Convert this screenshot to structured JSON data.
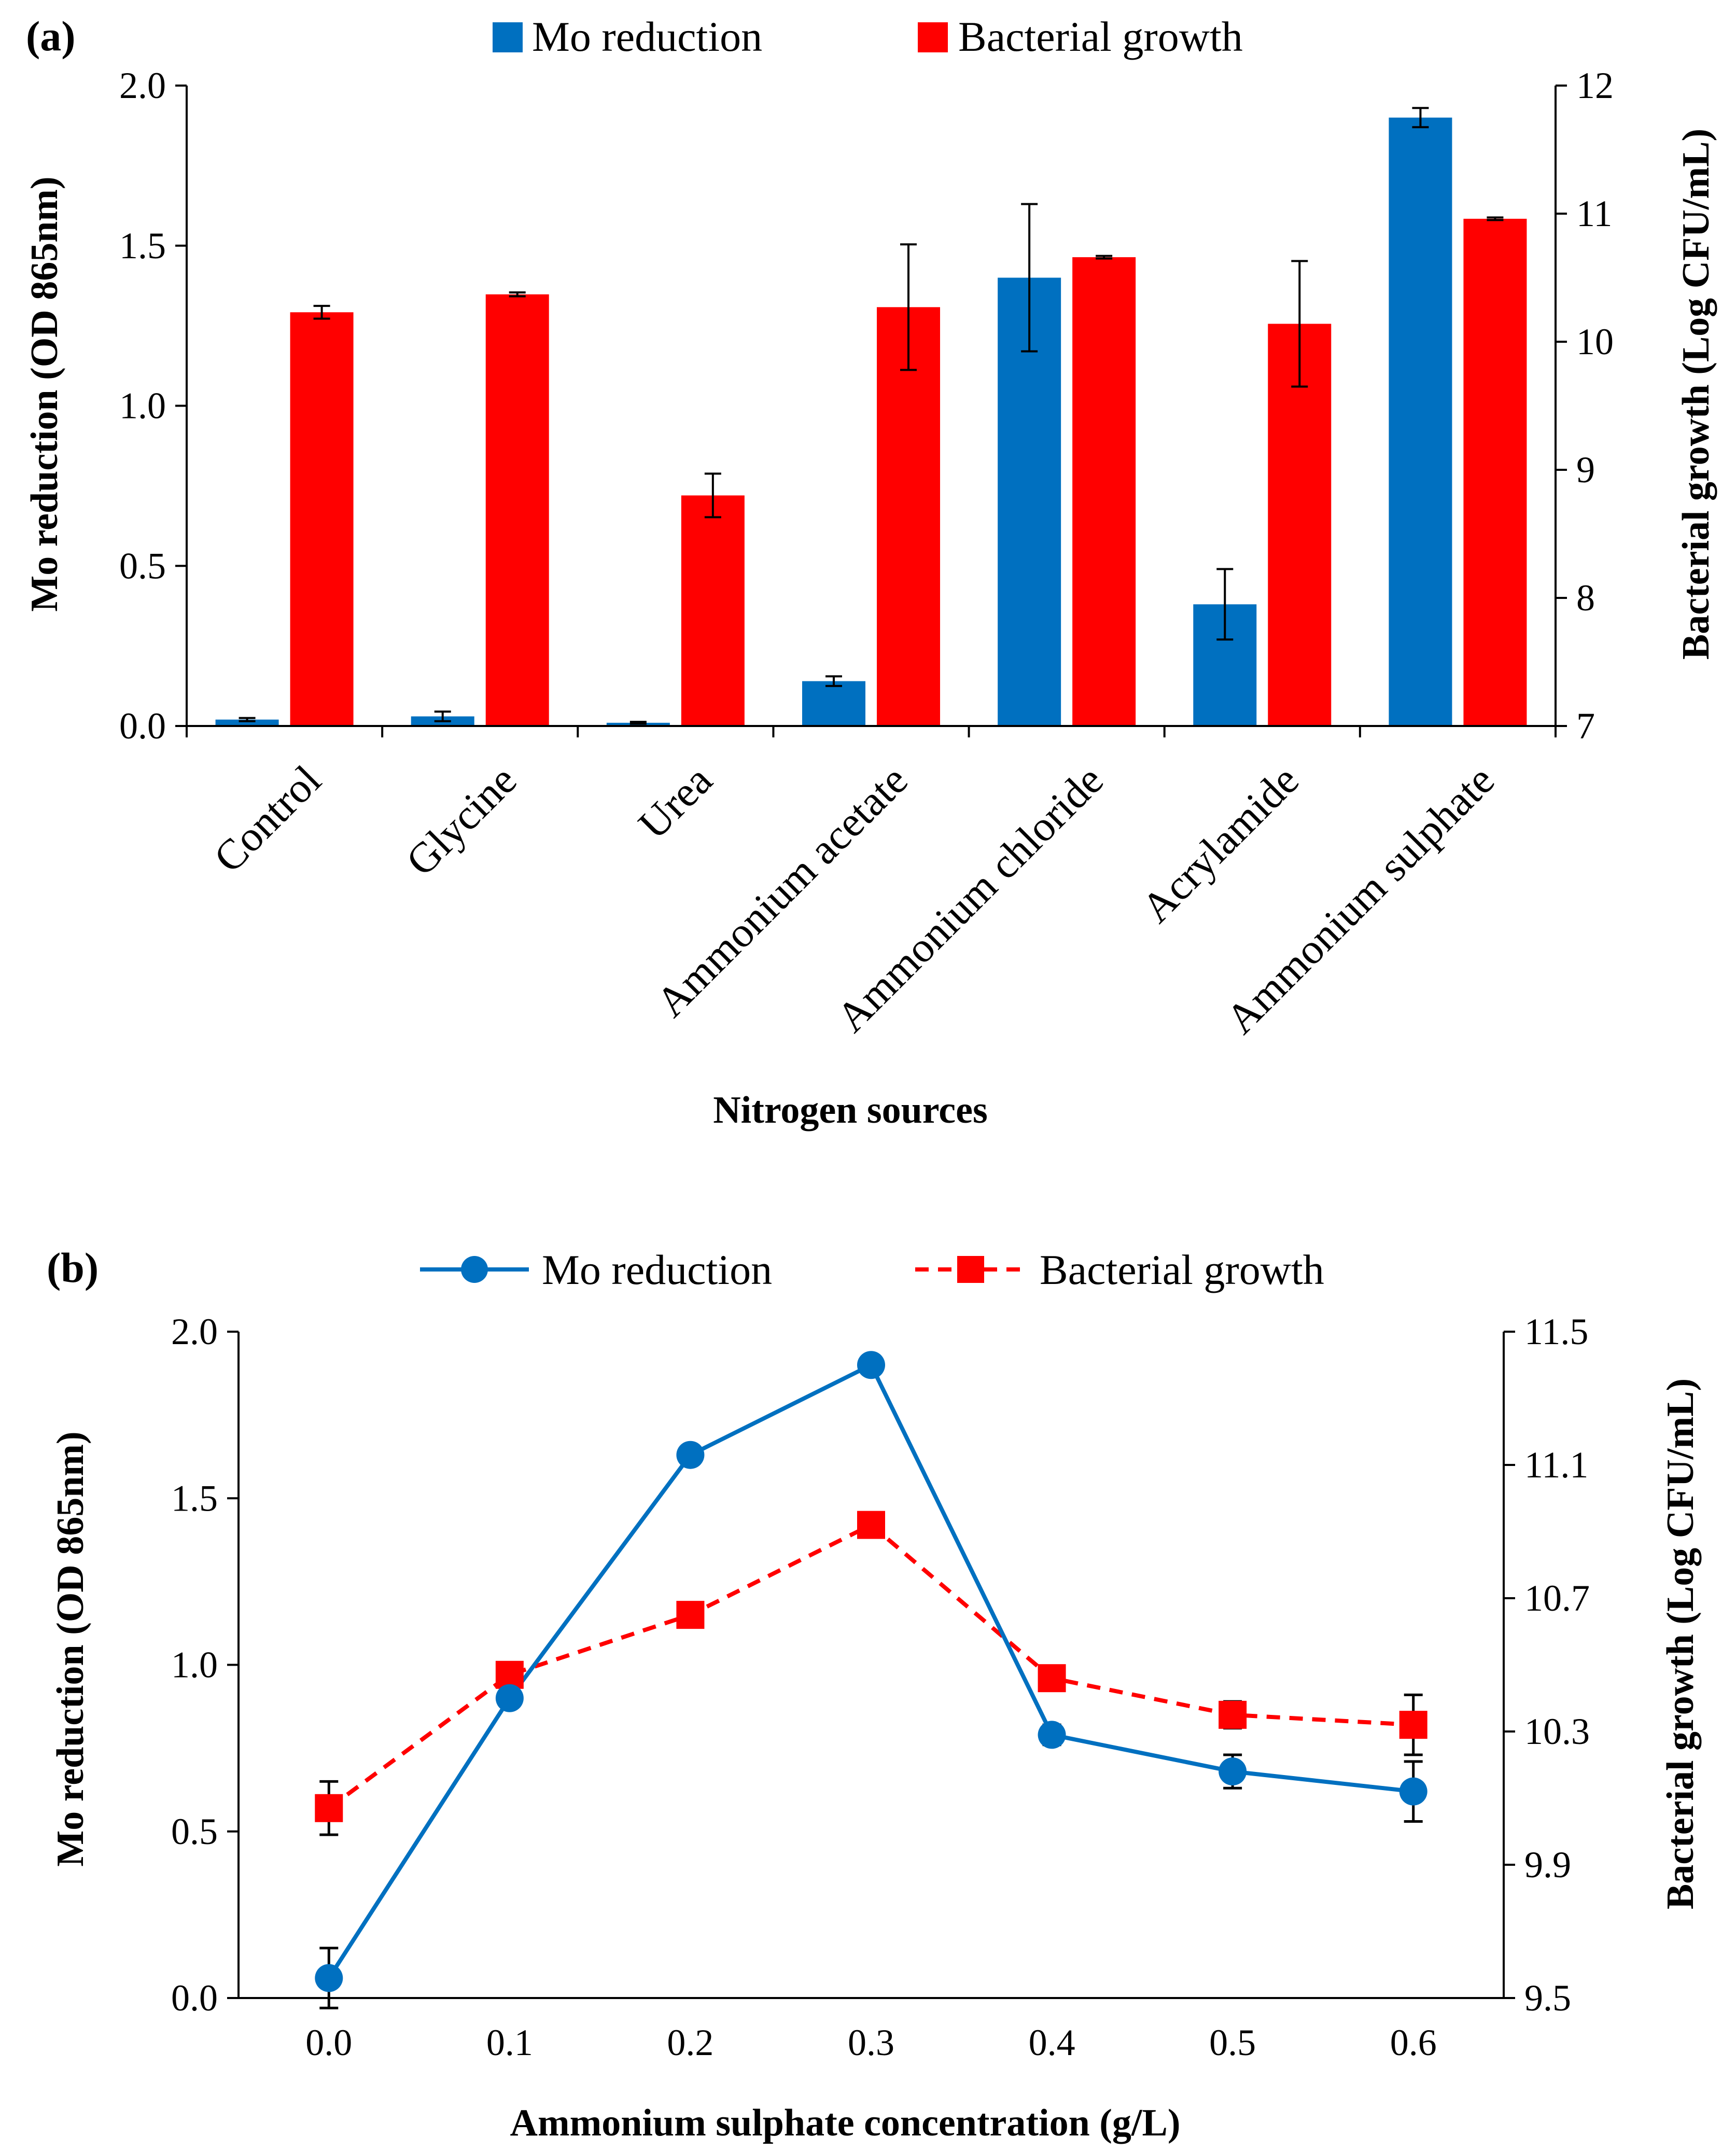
{
  "chart_data": [
    {
      "type": "bar",
      "panel_label": "(a)",
      "xlabel": "Nitrogen sources",
      "ylabel": "Mo reduction (OD 865nm)",
      "y2label": "Bacterial growth (Log CFU/mL)",
      "categories": [
        "Control",
        "Glycine",
        "Urea",
        "Ammonium acetate",
        "Ammonium chloride",
        "Acrylamide",
        "Ammonium sulphate"
      ],
      "ylim": [
        0,
        2.0
      ],
      "yticks": [
        "0.0",
        "0.5",
        "1.0",
        "1.5",
        "2.0"
      ],
      "y2lim": [
        7,
        12
      ],
      "y2ticks": [
        "7",
        "8",
        "9",
        "10",
        "11",
        "12"
      ],
      "legend_position": "top",
      "series": [
        {
          "name": "Mo reduction",
          "axis": "left",
          "color": "#0070C0",
          "values": [
            0.02,
            0.03,
            0.01,
            0.14,
            1.4,
            0.38,
            1.9
          ],
          "errors": [
            0.005,
            0.015,
            0.003,
            0.015,
            0.23,
            0.11,
            0.03
          ]
        },
        {
          "name": "Bacterial growth",
          "axis": "right",
          "color": "#FF0000",
          "values": [
            10.23,
            10.37,
            8.8,
            10.27,
            10.66,
            10.14,
            10.96
          ],
          "errors": [
            0.05,
            0.015,
            0.17,
            0.49,
            0.01,
            0.49,
            0.01
          ]
        }
      ]
    },
    {
      "type": "line",
      "panel_label": "(b)",
      "xlabel": "Ammonium sulphate concentration (g/L)",
      "ylabel": "Mo reduction (OD 865nm)",
      "y2label": "Bacterial growth (Log CFU/mL)",
      "x": [
        "0.0",
        "0.1",
        "0.2",
        "0.3",
        "0.4",
        "0.5",
        "0.6"
      ],
      "ylim": [
        0,
        2.0
      ],
      "yticks": [
        "0.0",
        "0.5",
        "1.0",
        "1.5",
        "2.0"
      ],
      "y2lim": [
        9.5,
        11.5
      ],
      "y2ticks": [
        "9.5",
        "9.9",
        "10.3",
        "10.7",
        "11.1",
        "11.5"
      ],
      "legend_position": "top",
      "series": [
        {
          "name": "Mo reduction",
          "axis": "left",
          "color": "#0070C0",
          "marker": "circle",
          "line": "solid",
          "values": [
            0.06,
            0.9,
            1.63,
            1.9,
            0.79,
            0.68,
            0.62
          ],
          "errors": [
            0.09,
            0.015,
            0.015,
            0.015,
            0.03,
            0.05,
            0.09
          ]
        },
        {
          "name": "Bacterial growth",
          "axis": "right",
          "color": "#FF0000",
          "marker": "square",
          "line": "dashed",
          "values": [
            10.07,
            10.47,
            10.65,
            10.92,
            10.46,
            10.35,
            10.32
          ],
          "errors": [
            0.08,
            0.01,
            0.01,
            0.01,
            0.02,
            0.04,
            0.09
          ]
        }
      ]
    }
  ]
}
